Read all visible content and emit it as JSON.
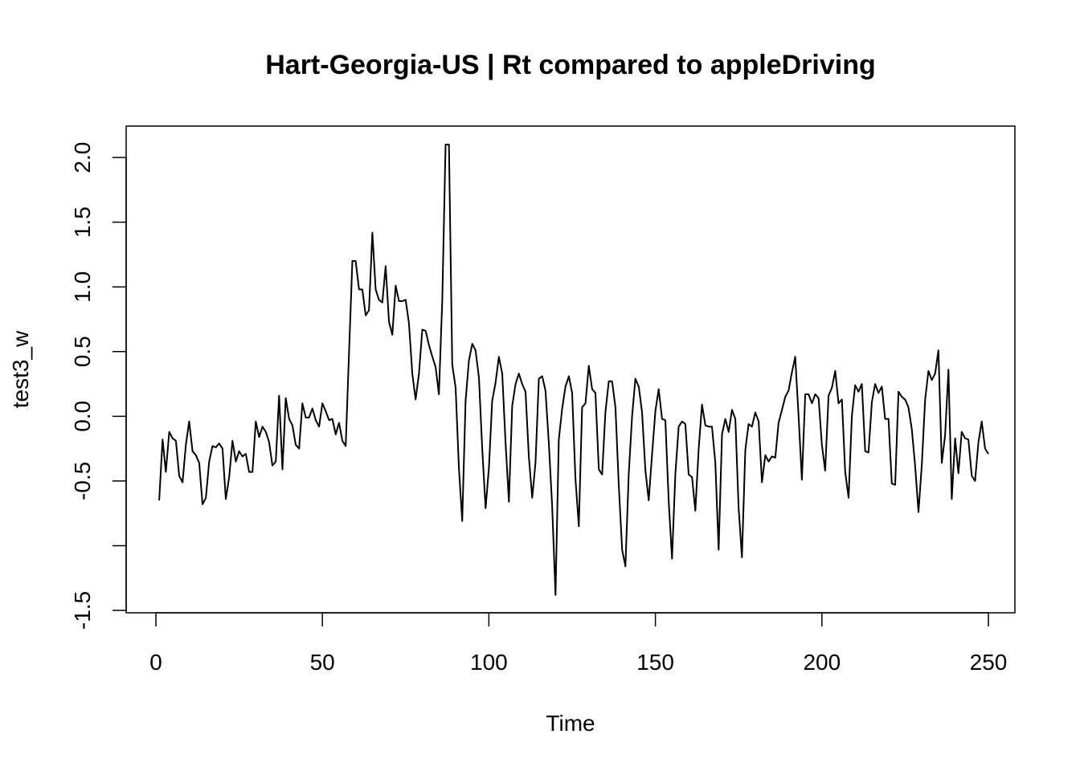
{
  "chart_data": {
    "type": "line",
    "title": "Hart-Georgia-US | Rt compared to appleDriving",
    "xlabel": "Time",
    "ylabel": "test3_w",
    "xlim": [
      0,
      250
    ],
    "ylim": [
      -1.5,
      2.1
    ],
    "x_ticks": [
      {
        "value": 0,
        "label": "0"
      },
      {
        "value": 50,
        "label": "50"
      },
      {
        "value": 100,
        "label": "100"
      },
      {
        "value": 150,
        "label": "150"
      },
      {
        "value": 200,
        "label": "200"
      },
      {
        "value": 250,
        "label": "250"
      }
    ],
    "y_ticks": [
      {
        "value": -1.5,
        "label": "-1.5"
      },
      {
        "value": -1.0,
        "label": ""
      },
      {
        "value": -0.5,
        "label": "-0.5"
      },
      {
        "value": 0.0,
        "label": "0.0"
      },
      {
        "value": 0.5,
        "label": "0.5"
      },
      {
        "value": 1.0,
        "label": "1.0"
      },
      {
        "value": 1.5,
        "label": "1.5"
      },
      {
        "value": 2.0,
        "label": "2.0"
      }
    ],
    "grid": false,
    "line_color": "#000000",
    "x_start": 1,
    "series": [
      {
        "values": [
          -0.65,
          -0.18,
          -0.43,
          -0.12,
          -0.17,
          -0.19,
          -0.46,
          -0.51,
          -0.22,
          -0.04,
          -0.27,
          -0.3,
          -0.36,
          -0.68,
          -0.63,
          -0.35,
          -0.23,
          -0.24,
          -0.21,
          -0.25,
          -0.64,
          -0.47,
          -0.19,
          -0.35,
          -0.27,
          -0.31,
          -0.29,
          -0.43,
          -0.43,
          -0.04,
          -0.16,
          -0.08,
          -0.12,
          -0.2,
          -0.38,
          -0.35,
          0.16,
          -0.41,
          0.14,
          -0.02,
          -0.07,
          -0.22,
          -0.25,
          0.1,
          -0.01,
          -0.01,
          0.06,
          -0.03,
          -0.08,
          0.1,
          0.04,
          -0.03,
          -0.02,
          -0.14,
          -0.05,
          -0.19,
          -0.23,
          0.5,
          1.2,
          1.2,
          0.98,
          0.98,
          0.78,
          0.82,
          1.42,
          0.98,
          0.9,
          0.88,
          1.16,
          0.73,
          0.63,
          1.01,
          0.89,
          0.89,
          0.9,
          0.72,
          0.33,
          0.13,
          0.33,
          0.67,
          0.66,
          0.55,
          0.46,
          0.38,
          0.17,
          0.9,
          2.1,
          2.1,
          0.4,
          0.22,
          -0.4,
          -0.81,
          0.12,
          0.43,
          0.56,
          0.51,
          0.3,
          -0.25,
          -0.71,
          -0.4,
          0.12,
          0.26,
          0.46,
          0.33,
          -0.2,
          -0.66,
          0.08,
          0.25,
          0.33,
          0.25,
          0.19,
          -0.31,
          -0.63,
          -0.36,
          0.29,
          0.31,
          0.2,
          -0.21,
          -0.69,
          -1.38,
          -0.18,
          0.06,
          0.23,
          0.31,
          0.18,
          -0.48,
          -0.85,
          0.07,
          0.1,
          0.39,
          0.21,
          0.18,
          -0.41,
          -0.45,
          0.03,
          0.27,
          0.27,
          0.07,
          -0.53,
          -1.03,
          -1.16,
          -0.45,
          0.0,
          0.29,
          0.23,
          0.03,
          -0.42,
          -0.65,
          -0.29,
          0.04,
          0.21,
          -0.02,
          -0.03,
          -0.66,
          -1.1,
          -0.44,
          -0.08,
          -0.04,
          -0.06,
          -0.45,
          -0.47,
          -0.73,
          -0.25,
          0.09,
          -0.07,
          -0.08,
          -0.08,
          -0.36,
          -1.03,
          -0.14,
          -0.02,
          -0.12,
          0.05,
          -0.02,
          -0.71,
          -1.09,
          -0.26,
          -0.06,
          -0.08,
          0.03,
          -0.04,
          -0.51,
          -0.3,
          -0.35,
          -0.31,
          -0.32,
          -0.05,
          0.05,
          0.15,
          0.2,
          0.34,
          0.46,
          0.0,
          -0.49,
          0.17,
          0.17,
          0.1,
          0.17,
          0.14,
          -0.22,
          -0.42,
          0.16,
          0.22,
          0.35,
          0.1,
          0.13,
          -0.43,
          -0.63,
          0.0,
          0.24,
          0.19,
          0.25,
          -0.27,
          -0.28,
          0.11,
          0.25,
          0.18,
          0.23,
          -0.02,
          -0.02,
          -0.52,
          -0.53,
          0.19,
          0.15,
          0.13,
          0.07,
          -0.1,
          -0.38,
          -0.74,
          -0.38,
          0.13,
          0.35,
          0.28,
          0.33,
          0.51,
          -0.36,
          -0.15,
          0.36,
          -0.64,
          -0.17,
          -0.44,
          -0.12,
          -0.17,
          -0.18,
          -0.46,
          -0.5,
          -0.2,
          -0.04,
          -0.25,
          -0.29
        ]
      }
    ]
  }
}
